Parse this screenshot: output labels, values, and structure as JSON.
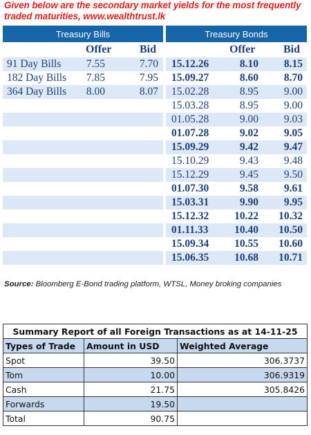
{
  "intro": "Given below are the secondary market yields for the most frequently traded maturities, www.wealthtrust.lk",
  "treasury_bills": {
    "heading": "Treasury Bills",
    "offer_label": "Offer",
    "bid_label": "Bid",
    "rows": [
      {
        "name": "91 Day Bills",
        "offer": "7.55",
        "bid": "7.70"
      },
      {
        "name": "182 Day Bills",
        "offer": "7.85",
        "bid": "7.95"
      },
      {
        "name": "364 Day Bills",
        "offer": "8.00",
        "bid": "8.07"
      }
    ]
  },
  "treasury_bonds": {
    "heading": "Treasury Bonds",
    "offer_label": "Offer",
    "bid_label": "Bid",
    "rows": [
      {
        "date": "15.12.26",
        "offer": "8.10",
        "bid": "8.15",
        "bold": true
      },
      {
        "date": "15.09.27",
        "offer": "8.60",
        "bid": "8.70",
        "bold": true
      },
      {
        "date": "15.02.28",
        "offer": "8.95",
        "bid": "9.00",
        "bold": false
      },
      {
        "date": "15.03.28",
        "offer": "8.95",
        "bid": "9.00",
        "bold": false
      },
      {
        "date": "01.05.28",
        "offer": "9.00",
        "bid": "9.03",
        "bold": false
      },
      {
        "date": "01.07.28",
        "offer": "9.02",
        "bid": "9.05",
        "bold": true
      },
      {
        "date": "15.09.29",
        "offer": "9.42",
        "bid": "9.47",
        "bold": true
      },
      {
        "date": "15.10.29",
        "offer": "9.43",
        "bid": "9.48",
        "bold": false
      },
      {
        "date": "15.12.29",
        "offer": "9.45",
        "bid": "9.50",
        "bold": false
      },
      {
        "date": "01.07.30",
        "offer": "9.58",
        "bid": "9.61",
        "bold": true
      },
      {
        "date": "15.03.31",
        "offer": "9.90",
        "bid": "9.95",
        "bold": true
      },
      {
        "date": "15.12.32",
        "offer": "10.22",
        "bid": "10.32",
        "bold": true
      },
      {
        "date": "01.11.33",
        "offer": "10.40",
        "bid": "10.50",
        "bold": true
      },
      {
        "date": "15.09.34",
        "offer": "10.55",
        "bid": "10.60",
        "bold": true
      },
      {
        "date": "15.06.35",
        "offer": "10.68",
        "bid": "10.71",
        "bold": true
      }
    ]
  },
  "source": {
    "label": "Source:",
    "text": " Bloomberg E-Bond trading platform, WTSL, Money broking companies"
  },
  "summary": {
    "title": "Summary Report of all Foreign Transactions as at 14-11-25",
    "headers": [
      "Types of Trade",
      "Amount in USD",
      "Weighted Average"
    ],
    "rows": [
      {
        "type": "Spot",
        "amount": "39.50",
        "wavg": "306.3737"
      },
      {
        "type": "Tom",
        "amount": "10.00",
        "wavg": "306.9319"
      },
      {
        "type": "Cash",
        "amount": "21.75",
        "wavg": "305.8426"
      },
      {
        "type": "Forwards",
        "amount": "19.50",
        "wavg": ""
      },
      {
        "type": "Total",
        "amount": "90.75",
        "wavg": ""
      }
    ]
  }
}
